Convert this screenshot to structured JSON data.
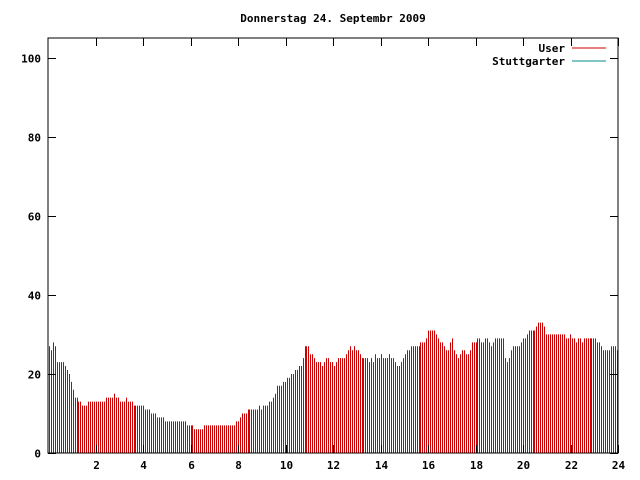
{
  "chart_data": {
    "type": "bar",
    "title": "Donnerstag 24. Septembr 2009",
    "xlabel": "",
    "ylabel": "",
    "xlim": [
      0,
      24
    ],
    "ylim": [
      0,
      105
    ],
    "xticks": [
      2,
      4,
      6,
      8,
      10,
      12,
      14,
      16,
      18,
      20,
      22,
      24
    ],
    "yticks": [
      0,
      20,
      40,
      60,
      80,
      100
    ],
    "grid": false,
    "legend_position": "top-right",
    "bar_color": "#cc0000",
    "series": [
      {
        "name": "User",
        "color": "#cc0000",
        "values": [
          27,
          26,
          28,
          27,
          23,
          23,
          23,
          23,
          22,
          21,
          20,
          18,
          16,
          14,
          14,
          13,
          13,
          12,
          12,
          12,
          13,
          13,
          13,
          13,
          13,
          13,
          13,
          13,
          13,
          14,
          14,
          14,
          14,
          15,
          14,
          14,
          13,
          13,
          13,
          14,
          13,
          13,
          13,
          12,
          12,
          12,
          12,
          12,
          12,
          11,
          11,
          11,
          10,
          10,
          10,
          9,
          9,
          9,
          9,
          8,
          8,
          8,
          8,
          8,
          8,
          8,
          8,
          8,
          8,
          8,
          7,
          7,
          7,
          7,
          6,
          6,
          6,
          6,
          6,
          7,
          7,
          7,
          7,
          7,
          7,
          7,
          7,
          7,
          7,
          7,
          7,
          7,
          7,
          7,
          7,
          8,
          8,
          9,
          10,
          10,
          10,
          11,
          11,
          11,
          11,
          11,
          11,
          12,
          11,
          12,
          12,
          12,
          13,
          13,
          14,
          15,
          17,
          17,
          17,
          18,
          18,
          19,
          19,
          20,
          20,
          21,
          21,
          22,
          22,
          24,
          27,
          27,
          27,
          25,
          25,
          24,
          23,
          23,
          23,
          22,
          23,
          24,
          24,
          23,
          23,
          22,
          23,
          24,
          24,
          24,
          24,
          25,
          26,
          27,
          26,
          27,
          26,
          26,
          25,
          24,
          24,
          24,
          24,
          23,
          24,
          23,
          25,
          24,
          24,
          25,
          24,
          24,
          24,
          25,
          24,
          24,
          23,
          22,
          22,
          23,
          24,
          25,
          26,
          26,
          27,
          27,
          27,
          27,
          27,
          28,
          28,
          28,
          29,
          31,
          31,
          31,
          31,
          30,
          29,
          28,
          28,
          27,
          26,
          26,
          28,
          29,
          26,
          25,
          24,
          25,
          26,
          26,
          25,
          25,
          26,
          28,
          28,
          28,
          29,
          29,
          28,
          28,
          29,
          29,
          28,
          27,
          28,
          29,
          29,
          29,
          29,
          29,
          24,
          23,
          24,
          26,
          27,
          27,
          27,
          27,
          28,
          29,
          29,
          30,
          31,
          31,
          31,
          31,
          32,
          33,
          33,
          33,
          32,
          30,
          30,
          30,
          30,
          30,
          30,
          30,
          30,
          30,
          30,
          29,
          29,
          30,
          29,
          29,
          28,
          29,
          29,
          28,
          29,
          29,
          29,
          29,
          29,
          29,
          29,
          28,
          28,
          27,
          26,
          26,
          26,
          26,
          27,
          27,
          27,
          26
        ]
      },
      {
        "name": "Stuttgarter",
        "color": "#008b8b",
        "values": []
      }
    ]
  }
}
